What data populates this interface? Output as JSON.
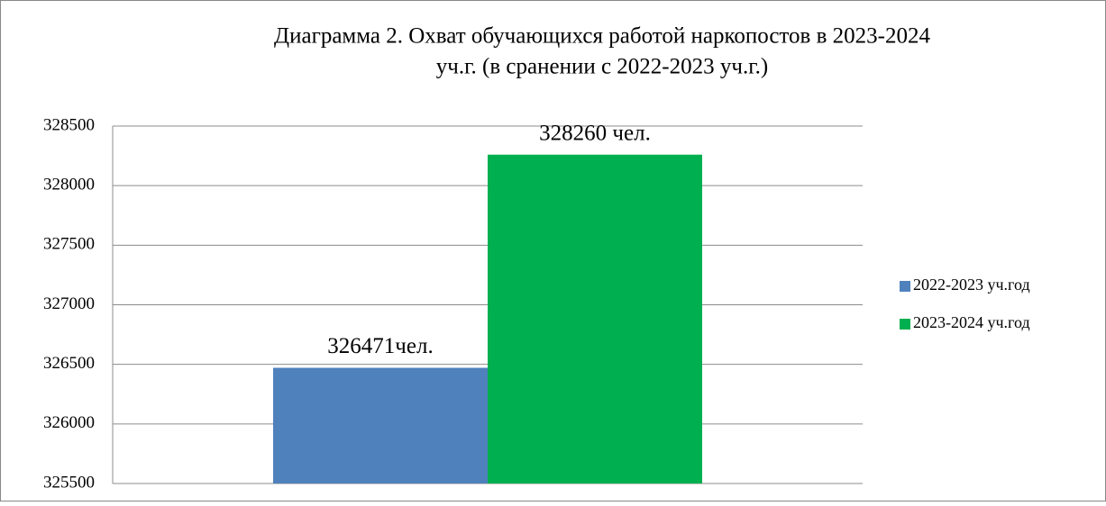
{
  "chart_data": {
    "type": "bar",
    "title": [
      "Диаграмма 2. Охват обучающихся работой наркопостов  в 2023-2024",
      "уч.г. (в сранении с 2022-2023 уч.г.)"
    ],
    "categories": [
      null
    ],
    "series": [
      {
        "name": "2022-2023 уч.год",
        "color": "#4f81bd",
        "values": [
          326471
        ],
        "value_labels": [
          "326471чел."
        ]
      },
      {
        "name": "2023-2024 уч.год",
        "color": "#00b050",
        "values": [
          328260
        ],
        "value_labels": [
          "328260 чел."
        ]
      }
    ],
    "ylim": [
      325500,
      328500
    ],
    "yticks": [
      325500,
      326000,
      326500,
      327000,
      327500,
      328000,
      328500
    ],
    "grid": true,
    "legend": "right"
  }
}
